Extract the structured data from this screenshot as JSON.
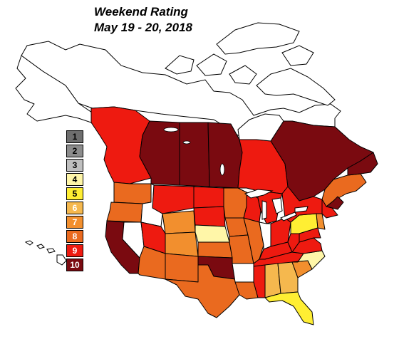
{
  "title": {
    "line1": "Weekend Rating",
    "line2": "May 19 - 20, 2018"
  },
  "legend": [
    {
      "label": "1",
      "color": "#6e6e6e",
      "text_color": "#000000"
    },
    {
      "label": "2",
      "color": "#8c8c8c",
      "text_color": "#000000"
    },
    {
      "label": "3",
      "color": "#bfbfbf",
      "text_color": "#000000"
    },
    {
      "label": "4",
      "color": "#fff6a8",
      "text_color": "#000000"
    },
    {
      "label": "5",
      "color": "#ffee33",
      "text_color": "#000000"
    },
    {
      "label": "6",
      "color": "#f5b84e",
      "text_color": "#ffffff"
    },
    {
      "label": "7",
      "color": "#f28f2e",
      "text_color": "#ffffff"
    },
    {
      "label": "8",
      "color": "#ea6a1f",
      "text_color": "#ffffff"
    },
    {
      "label": "9",
      "color": "#ee1a10",
      "text_color": "#ffffff"
    },
    {
      "label": "10",
      "color": "#7a0a10",
      "text_color": "#ffffff"
    }
  ],
  "regions": [
    {
      "name": "british-columbia",
      "rating": 9
    },
    {
      "name": "alberta",
      "rating": 10
    },
    {
      "name": "saskatchewan",
      "rating": 10
    },
    {
      "name": "manitoba",
      "rating": 10
    },
    {
      "name": "ontario",
      "rating": 9
    },
    {
      "name": "quebec",
      "rating": 10
    },
    {
      "name": "atlantic-canada",
      "rating": 8
    },
    {
      "name": "washington",
      "rating": 8
    },
    {
      "name": "oregon",
      "rating": 8
    },
    {
      "name": "california",
      "rating": 10
    },
    {
      "name": "nevada",
      "rating": 0
    },
    {
      "name": "idaho",
      "rating": 0
    },
    {
      "name": "montana",
      "rating": 9
    },
    {
      "name": "wyoming",
      "rating": 7
    },
    {
      "name": "utah",
      "rating": 9
    },
    {
      "name": "arizona",
      "rating": 8
    },
    {
      "name": "colorado",
      "rating": 7
    },
    {
      "name": "new-mexico",
      "rating": 8
    },
    {
      "name": "north-dakota",
      "rating": 9
    },
    {
      "name": "south-dakota",
      "rating": 9
    },
    {
      "name": "nebraska",
      "rating": 4
    },
    {
      "name": "kansas",
      "rating": 8
    },
    {
      "name": "oklahoma",
      "rating": 10
    },
    {
      "name": "texas",
      "rating": 8
    },
    {
      "name": "minnesota",
      "rating": 8
    },
    {
      "name": "iowa",
      "rating": 8
    },
    {
      "name": "missouri",
      "rating": 8
    },
    {
      "name": "arkansas",
      "rating": 0
    },
    {
      "name": "louisiana",
      "rating": 8
    },
    {
      "name": "wisconsin",
      "rating": 9
    },
    {
      "name": "illinois",
      "rating": 8
    },
    {
      "name": "michigan",
      "rating": 9
    },
    {
      "name": "indiana",
      "rating": 0
    },
    {
      "name": "ohio",
      "rating": 9
    },
    {
      "name": "kentucky",
      "rating": 9
    },
    {
      "name": "tennessee",
      "rating": 9
    },
    {
      "name": "mississippi",
      "rating": 9
    },
    {
      "name": "alabama",
      "rating": 6
    },
    {
      "name": "georgia",
      "rating": 6
    },
    {
      "name": "florida",
      "rating": 5
    },
    {
      "name": "south-carolina",
      "rating": 7
    },
    {
      "name": "north-carolina",
      "rating": 4
    },
    {
      "name": "virginia",
      "rating": 9
    },
    {
      "name": "west-virginia",
      "rating": 9
    },
    {
      "name": "pennsylvania",
      "rating": 5
    },
    {
      "name": "new-york",
      "rating": 9
    },
    {
      "name": "new-england",
      "rating": 9
    },
    {
      "name": "maine",
      "rating": 10
    },
    {
      "name": "new-jersey",
      "rating": 7
    },
    {
      "name": "maryland",
      "rating": 9
    }
  ]
}
